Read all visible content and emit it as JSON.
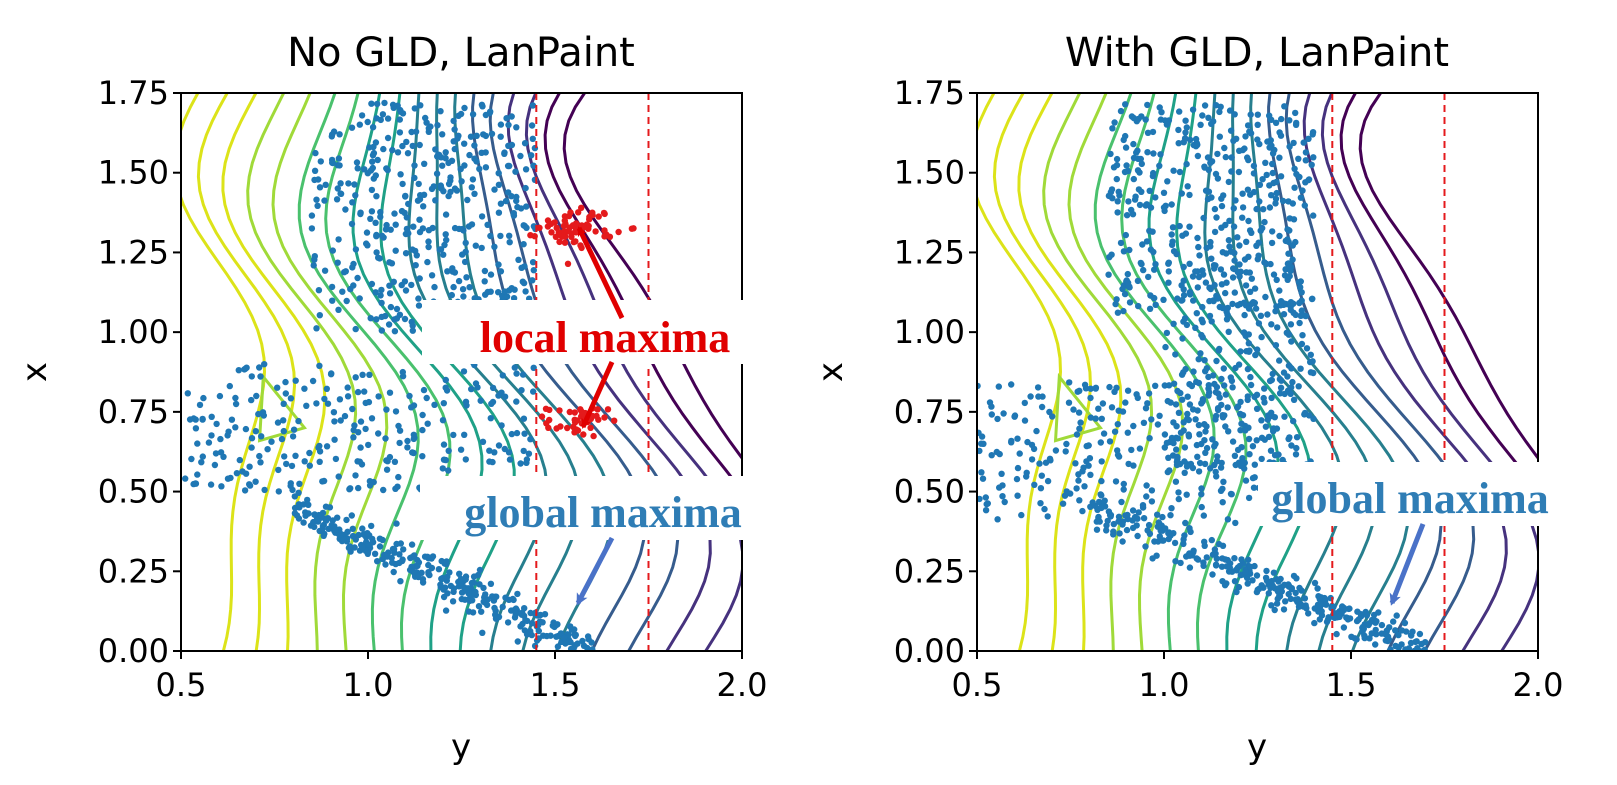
{
  "colors": {
    "sample": "#1f77b4",
    "stuck": "#e41a1c",
    "boundary": "#e41a1c",
    "annot_local": "#e00000",
    "annot_global": "#2f7db5",
    "arrow_global": "#4a72c8",
    "contours": [
      "#440154",
      "#46327e",
      "#365c8d",
      "#277f8e",
      "#1fa187",
      "#4ac16d",
      "#a0da39",
      "#dce319"
    ]
  },
  "chart_data": [
    {
      "type": "scatter",
      "title": "No GLD, LanPaint",
      "xlabel": "y",
      "ylabel": "x",
      "xlim": [
        0.5,
        2.0
      ],
      "ylim": [
        0.0,
        1.75
      ],
      "xticks": [
        "0.5",
        "1.0",
        "1.5",
        "2.0"
      ],
      "yticks": [
        "0.00",
        "0.25",
        "0.50",
        "0.75",
        "1.00",
        "1.25",
        "1.50",
        "1.75"
      ],
      "boundaries": [
        1.45,
        1.75
      ],
      "grid": false,
      "annotations": [
        {
          "text": "local maxima",
          "color": "red",
          "box_at": [
            1.47,
            0.97
          ],
          "arrow_to": [
            [
              1.57,
              1.34
            ],
            [
              1.57,
              0.69
            ]
          ]
        },
        {
          "text": "global maxima",
          "color": "blue",
          "box_at": [
            1.44,
            0.44
          ],
          "arrow_to": [
            [
              1.57,
              0.14
            ]
          ]
        }
      ],
      "clusters": {
        "blob_top": {
          "y_range": [
            0.85,
            1.45
          ],
          "x_range": [
            1.0,
            1.72
          ]
        },
        "branch_mid": {
          "y_range": [
            0.5,
            1.45
          ],
          "x_range": [
            0.5,
            0.9
          ]
        },
        "diag_low": {
          "y_range": [
            0.8,
            1.6
          ],
          "x_range": [
            0.0,
            0.45
          ]
        },
        "stuck_upper": {
          "y": 1.56,
          "x": 1.33
        },
        "stuck_lower": {
          "y": 1.56,
          "x": 0.72
        }
      }
    },
    {
      "type": "scatter",
      "title": "With GLD, LanPaint",
      "xlabel": "y",
      "ylabel": "x",
      "xlim": [
        0.5,
        2.0
      ],
      "ylim": [
        0.0,
        1.75
      ],
      "xticks": [
        "0.5",
        "1.0",
        "1.5",
        "2.0"
      ],
      "yticks": [
        "0.00",
        "0.25",
        "0.50",
        "0.75",
        "1.00",
        "1.25",
        "1.50",
        "1.75"
      ],
      "boundaries": [
        1.45,
        1.75
      ],
      "grid": false,
      "annotations": [
        {
          "text": "global maxima",
          "color": "blue",
          "box_at": [
            1.3,
            0.48
          ],
          "arrow_to": [
            [
              1.61,
              0.14
            ]
          ]
        }
      ],
      "clusters": {
        "blob_top": {
          "y_range": [
            0.85,
            1.4
          ],
          "x_range": [
            1.05,
            1.72
          ]
        },
        "ridge": {
          "y_range": [
            1.0,
            1.4
          ],
          "x_range": [
            0.5,
            1.1
          ]
        },
        "branch_mid": {
          "y_range": [
            0.5,
            1.35
          ],
          "x_range": [
            0.4,
            0.85
          ]
        },
        "diag_low": {
          "y_range": [
            0.8,
            1.7
          ],
          "x_range": [
            0.0,
            0.45
          ]
        }
      }
    }
  ]
}
